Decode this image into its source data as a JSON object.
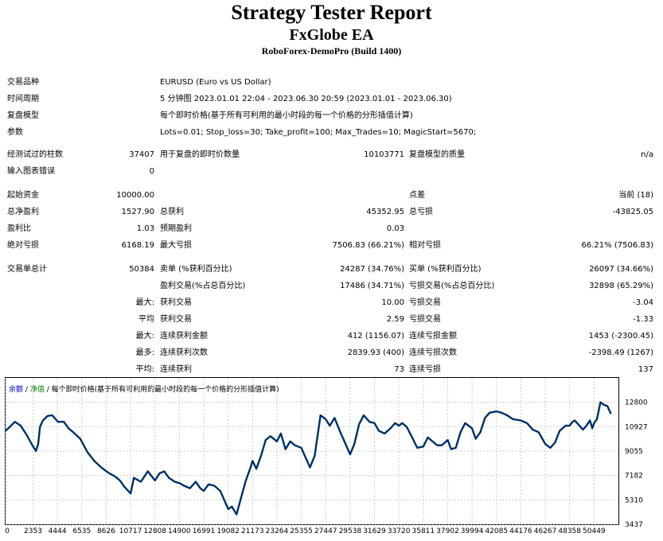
{
  "header": {
    "title": "Strategy Tester Report",
    "ea_name": "FxGlobe EA",
    "broker": "RoboForex-DemoPro (Build 1400)"
  },
  "settings": {
    "symbol_label": "交易品种",
    "symbol_value": "EURUSD (Euro vs US Dollar)",
    "period_label": "时间周期",
    "period_value": "5 分钟图 2023.01.01 22:04 - 2023.06.30 20:59 (2023.01.01 - 2023.06.30)",
    "model_label": "复盘模型",
    "model_value": "每个即时价格(基于所有可利用的最小时段的每一个价格的分形插值计算)",
    "params_label": "参数",
    "params_value": "Lots=0.01; Stop_loss=30; Take_profit=100; Max_Trades=10; MagicStart=5670;"
  },
  "bars": {
    "bars_label": "经测试过的柱数",
    "bars_value": "37407",
    "ticks_label": "用于复盘的即时价数量",
    "ticks_value": "10103771",
    "quality_label": "复盘模型的质量",
    "quality_value": "n/a",
    "errors_label": "输入图表错误",
    "errors_value": "0"
  },
  "stats": {
    "deposit_label": "起始资金",
    "deposit_value": "10000.00",
    "spread_label": "点差",
    "spread_value": "当前 (18)",
    "net_label": "总净盈利",
    "net_value": "1527.90",
    "gross_profit_label": "总获利",
    "gross_profit_value": "45352.95",
    "gross_loss_label": "总亏损",
    "gross_loss_value": "-43825.05",
    "pf_label": "盈利比",
    "pf_value": "1.03",
    "payoff_label": "预期盈利",
    "payoff_value": "0.03",
    "abs_dd_label": "绝对亏损",
    "abs_dd_value": "6168.19",
    "max_dd_label": "最大亏损",
    "max_dd_value": "7506.83 (66.21%)",
    "rel_dd_label": "相对亏损",
    "rel_dd_value": "66.21% (7506.83)"
  },
  "trades": {
    "total_label": "交易单总计",
    "total_value": "50384",
    "short_label": "卖单 (%获利百分比)",
    "short_value": "24287 (34.76%)",
    "long_label": "买单 (%获利百分比)",
    "long_value": "26097 (34.66%)",
    "profit_trades_label": "盈利交易(%占总百分比)",
    "profit_trades_value": "17486 (34.71%)",
    "loss_trades_label": "亏损交易(%占总百分比)",
    "loss_trades_value": "32898 (65.29%)",
    "largest_prefix": "最大:",
    "largest_profit_label": "获利交易",
    "largest_profit_value": "10.00",
    "largest_loss_label": "亏损交易",
    "largest_loss_value": "-3.04",
    "average_prefix": "平均",
    "average_profit_label": "获利交易",
    "average_profit_value": "2.59",
    "average_loss_label": "亏损交易",
    "average_loss_value": "-1.33",
    "max_prefix": "最大:",
    "max_cons_wins_label": "连续获利金额",
    "max_cons_wins_value": "412 (1156.07)",
    "max_cons_losses_label": "连续亏损金额",
    "max_cons_losses_value": "1453 (-2300.45)",
    "most_prefix": "最多:",
    "most_cons_profit_label": "连续获利次数",
    "most_cons_profit_value": "2839.93 (400)",
    "most_cons_loss_label": "连续亏损次数",
    "most_cons_loss_value": "-2398.49 (1267)",
    "avg_prefix": "平均:",
    "avg_cons_wins_label": "连续获利",
    "avg_cons_wins_value": "73",
    "avg_cons_losses_label": "连续亏损",
    "avg_cons_losses_value": "137"
  },
  "chart_data": {
    "type": "line",
    "legend": {
      "balance": "余额",
      "sep1": "/",
      "equity": "净值",
      "sep2": "/",
      "model": "每个即时价格(基于所有可利用的最小时段的每一个价格的分形插值计算)"
    },
    "colors": {
      "balance": "#0a1a8c",
      "equity": "#1fa01f",
      "legend_balance": "#0000c0",
      "legend_equity": "#008000"
    },
    "xlim": [
      0,
      52540
    ],
    "ylim": [
      3437,
      14668
    ],
    "y_ticks": [
      "12800",
      "10927",
      "9055",
      "7182",
      "5310",
      "3437"
    ],
    "y_tick_values": [
      12800,
      10927,
      9055,
      7182,
      5310,
      3437
    ],
    "x_ticks": [
      "0",
      "2353",
      "4444",
      "6535",
      "8626",
      "10717",
      "12808",
      "14900",
      "16991",
      "19082",
      "21173",
      "23264",
      "25355",
      "27447",
      "29538",
      "31629",
      "33720",
      "35811",
      "37902",
      "39994",
      "42085",
      "44176",
      "46267",
      "48358",
      "50449"
    ],
    "x_tick_values": [
      0,
      2353,
      4444,
      6535,
      8626,
      10717,
      12808,
      14900,
      16991,
      19082,
      21173,
      23264,
      25355,
      27447,
      29538,
      31629,
      33720,
      35811,
      37902,
      39994,
      42085,
      44176,
      46267,
      48358,
      50449
    ],
    "series": [
      {
        "x": [
          0,
          400,
          800,
          1300,
          1800,
          2300,
          2600,
          2800,
          2950,
          3200,
          3600,
          4000,
          4500,
          5000,
          5400,
          5800,
          6400,
          7000,
          7600,
          8200,
          8800,
          9400,
          9800,
          10200,
          10717,
          11000,
          11600,
          12200,
          12808,
          13200,
          13600,
          14000,
          14500,
          14900,
          15300,
          15800,
          16300,
          16700,
          16991,
          17400,
          17900,
          18400,
          18800,
          19082,
          19400,
          19800,
          20200,
          20600,
          21000,
          21173,
          21500,
          21900,
          22300,
          22700,
          23264,
          23600,
          24000,
          24400,
          24800,
          25355,
          25700,
          26100,
          26500,
          27000,
          27447,
          27800,
          28200,
          28700,
          29200,
          29538,
          29900,
          30300,
          30700,
          31200,
          31629,
          32000,
          32500,
          33000,
          33400,
          33720,
          34000,
          34400,
          34800,
          35300,
          35811,
          36200,
          36600,
          37000,
          37400,
          37902,
          38200,
          38600,
          39000,
          39400,
          39994,
          40300,
          40700,
          41100,
          41500,
          42085,
          42500,
          43000,
          43500,
          44176,
          44700,
          45200,
          45700,
          46267,
          46700,
          47100,
          47500,
          48000,
          48358,
          48600,
          48800,
          49100,
          49500,
          49800,
          50100,
          50300,
          50449,
          50700,
          51000,
          51300,
          51600,
          51900
        ],
        "y": [
          10600,
          10950,
          11300,
          11000,
          10300,
          9500,
          9050,
          9600,
          10900,
          11400,
          11750,
          11800,
          11300,
          11300,
          10800,
          10500,
          10000,
          9000,
          8300,
          7800,
          7400,
          7100,
          6800,
          6300,
          5800,
          7000,
          6700,
          7500,
          6800,
          7350,
          7500,
          7000,
          6700,
          6600,
          6400,
          6200,
          6700,
          6200,
          6000,
          6500,
          6400,
          6000,
          5200,
          4600,
          4800,
          4200,
          5500,
          6800,
          7800,
          8300,
          7700,
          8700,
          9900,
          10200,
          9800,
          10400,
          9200,
          9800,
          9500,
          9300,
          8600,
          7800,
          8700,
          11800,
          11500,
          11000,
          11600,
          10500,
          9500,
          8800,
          9600,
          11100,
          11800,
          11300,
          11200,
          10600,
          10400,
          10800,
          11200,
          11000,
          11200,
          10900,
          10200,
          9300,
          9400,
          10100,
          9800,
          9500,
          9500,
          9900,
          9200,
          9300,
          10500,
          11200,
          10800,
          10000,
          10500,
          11600,
          12000,
          12100,
          12000,
          11800,
          11500,
          11400,
          11200,
          10700,
          10500,
          9600,
          9300,
          9700,
          10600,
          11000,
          11000,
          11300,
          11400,
          11100,
          10700,
          11000,
          11400,
          10800,
          11200,
          11500,
          12800,
          12600,
          12500,
          11900
        ]
      }
    ]
  }
}
